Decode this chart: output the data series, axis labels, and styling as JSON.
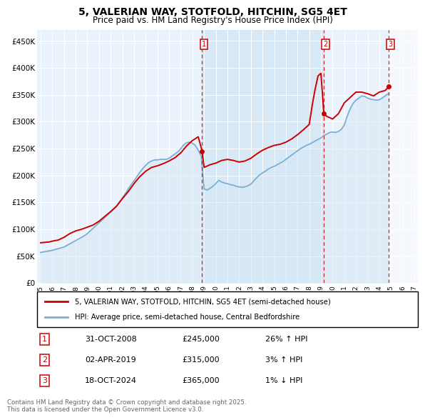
{
  "title": "5, VALERIAN WAY, STOTFOLD, HITCHIN, SG5 4ET",
  "subtitle": "Price paid vs. HM Land Registry's House Price Index (HPI)",
  "ylim": [
    0,
    470000
  ],
  "yticks": [
    0,
    50000,
    100000,
    150000,
    200000,
    250000,
    300000,
    350000,
    400000,
    450000
  ],
  "ytick_labels": [
    "£0",
    "£50K",
    "£100K",
    "£150K",
    "£200K",
    "£250K",
    "£300K",
    "£350K",
    "£400K",
    "£450K"
  ],
  "xlim_start": 1994.7,
  "xlim_end": 2027.3,
  "sale_color": "#cc0000",
  "hpi_color": "#7ab0d4",
  "hpi_fill_color": "#d6e8f5",
  "background_color": "#f0f4fa",
  "chart_bg": "#eaf2fb",
  "sale_label": "5, VALERIAN WAY, STOTFOLD, HITCHIN, SG5 4ET (semi-detached house)",
  "hpi_label": "HPI: Average price, semi-detached house, Central Bedfordshire",
  "transactions": [
    {
      "num": 1,
      "date": "31-OCT-2008",
      "price": 245000,
      "change": "26%",
      "direction": "↑",
      "x": 2008.83
    },
    {
      "num": 2,
      "date": "02-APR-2019",
      "price": 315000,
      "change": "3%",
      "direction": "↑",
      "x": 2019.25
    },
    {
      "num": 3,
      "date": "18-OCT-2024",
      "price": 365000,
      "change": "1%",
      "direction": "↓",
      "x": 2024.8
    }
  ],
  "footnote": "Contains HM Land Registry data © Crown copyright and database right 2025.\nThis data is licensed under the Open Government Licence v3.0.",
  "hpi_years": [
    1995.0,
    1995.25,
    1995.5,
    1995.75,
    1996.0,
    1996.25,
    1996.5,
    1996.75,
    1997.0,
    1997.25,
    1997.5,
    1997.75,
    1998.0,
    1998.25,
    1998.5,
    1998.75,
    1999.0,
    1999.25,
    1999.5,
    1999.75,
    2000.0,
    2000.25,
    2000.5,
    2000.75,
    2001.0,
    2001.25,
    2001.5,
    2001.75,
    2002.0,
    2002.25,
    2002.5,
    2002.75,
    2003.0,
    2003.25,
    2003.5,
    2003.75,
    2004.0,
    2004.25,
    2004.5,
    2004.75,
    2005.0,
    2005.25,
    2005.5,
    2005.75,
    2006.0,
    2006.25,
    2006.5,
    2006.75,
    2007.0,
    2007.25,
    2007.5,
    2007.75,
    2008.0,
    2008.25,
    2008.5,
    2008.75,
    2009.0,
    2009.25,
    2009.5,
    2009.75,
    2010.0,
    2010.25,
    2010.5,
    2010.75,
    2011.0,
    2011.25,
    2011.5,
    2011.75,
    2012.0,
    2012.25,
    2012.5,
    2012.75,
    2013.0,
    2013.25,
    2013.5,
    2013.75,
    2014.0,
    2014.25,
    2014.5,
    2014.75,
    2015.0,
    2015.25,
    2015.5,
    2015.75,
    2016.0,
    2016.25,
    2016.5,
    2016.75,
    2017.0,
    2017.25,
    2017.5,
    2017.75,
    2018.0,
    2018.25,
    2018.5,
    2018.75,
    2019.0,
    2019.25,
    2019.5,
    2019.75,
    2020.0,
    2020.25,
    2020.5,
    2020.75,
    2021.0,
    2021.25,
    2021.5,
    2021.75,
    2022.0,
    2022.25,
    2022.5,
    2022.75,
    2023.0,
    2023.25,
    2023.5,
    2023.75,
    2024.0,
    2024.25,
    2024.5,
    2024.75
  ],
  "hpi_values": [
    57000,
    58000,
    59000,
    60000,
    61000,
    62500,
    64000,
    65500,
    67000,
    70000,
    73000,
    76000,
    79000,
    82000,
    85000,
    88000,
    92000,
    97000,
    102000,
    107000,
    112000,
    117000,
    122000,
    127000,
    132000,
    137000,
    143000,
    150000,
    158000,
    166000,
    175000,
    183000,
    190000,
    198000,
    206000,
    213000,
    219000,
    224000,
    227000,
    229000,
    229000,
    230000,
    230000,
    230000,
    232000,
    236000,
    240000,
    244000,
    250000,
    257000,
    261000,
    262000,
    260000,
    256000,
    247000,
    236000,
    175000,
    173000,
    176000,
    180000,
    185000,
    191000,
    188000,
    186000,
    185000,
    183000,
    182000,
    180000,
    179000,
    178000,
    179000,
    181000,
    184000,
    190000,
    196000,
    201000,
    205000,
    208000,
    212000,
    215000,
    217000,
    220000,
    223000,
    226000,
    230000,
    234000,
    238000,
    242000,
    246000,
    250000,
    253000,
    256000,
    258000,
    261000,
    264000,
    267000,
    270000,
    274000,
    277000,
    280000,
    281000,
    280000,
    282000,
    286000,
    294000,
    310000,
    324000,
    334000,
    340000,
    344000,
    348000,
    347000,
    344000,
    342000,
    341000,
    340000,
    341000,
    344000,
    348000,
    352000
  ],
  "sale_years": [
    1995.0,
    1995.25,
    1995.5,
    1995.75,
    1996.0,
    1996.5,
    1997.0,
    1997.5,
    1998.0,
    1998.5,
    1999.0,
    1999.5,
    2000.0,
    2000.5,
    2001.0,
    2001.5,
    2002.0,
    2002.5,
    2003.0,
    2003.5,
    2004.0,
    2004.5,
    2005.0,
    2005.5,
    2006.0,
    2006.5,
    2007.0,
    2007.5,
    2008.0,
    2008.5,
    2008.83,
    2009.0,
    2009.5,
    2010.0,
    2010.5,
    2011.0,
    2011.5,
    2012.0,
    2012.5,
    2013.0,
    2013.5,
    2014.0,
    2014.5,
    2015.0,
    2015.5,
    2016.0,
    2016.5,
    2017.0,
    2017.5,
    2018.0,
    2018.25,
    2018.5,
    2018.75,
    2019.0,
    2019.25,
    2019.5,
    2020.0,
    2020.5,
    2021.0,
    2021.5,
    2022.0,
    2022.5,
    2023.0,
    2023.5,
    2024.0,
    2024.5,
    2024.8
  ],
  "sale_values": [
    75000,
    75500,
    76000,
    76500,
    78000,
    80000,
    85000,
    92000,
    97000,
    100000,
    104000,
    108000,
    115000,
    124000,
    133000,
    143000,
    157000,
    170000,
    185000,
    198000,
    208000,
    215000,
    218000,
    222000,
    227000,
    233000,
    242000,
    255000,
    265000,
    272000,
    245000,
    215000,
    220000,
    223000,
    228000,
    230000,
    228000,
    225000,
    227000,
    232000,
    240000,
    247000,
    252000,
    256000,
    258000,
    262000,
    268000,
    276000,
    285000,
    295000,
    330000,
    360000,
    385000,
    390000,
    315000,
    310000,
    305000,
    315000,
    335000,
    345000,
    355000,
    355000,
    352000,
    348000,
    355000,
    358000,
    365000
  ]
}
